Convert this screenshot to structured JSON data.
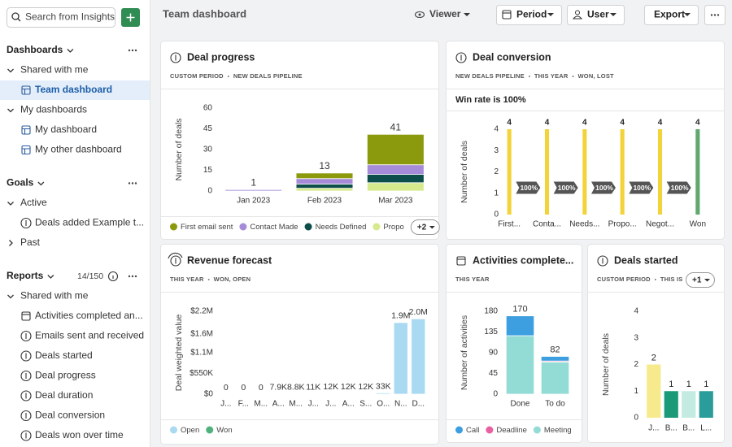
{
  "topbar": {
    "title": "Team dashboard",
    "viewer": "Viewer",
    "buttons": [
      "Period",
      "User",
      "Export"
    ]
  },
  "sidebar": {
    "search": "Search from Insights",
    "sections": [
      {
        "title": "Dashboards",
        "groups": [
          {
            "label": "Shared with me",
            "items": [
              "Team dashboard"
            ]
          },
          {
            "label": "My dashboards",
            "items": [
              "My dashboard",
              "My other dashboard"
            ]
          }
        ]
      },
      {
        "title": "Goals",
        "groups": [
          {
            "label": "Active",
            "items": [
              "Deals added Example t..."
            ]
          },
          {
            "label": "Past",
            "items": []
          }
        ]
      },
      {
        "title": "Reports",
        "count": "14/150",
        "groups": [
          {
            "label": "Shared with me",
            "items": [
              "Activities completed an...",
              "Emails sent and received",
              "Deals started",
              "Deal progress",
              "Deal duration",
              "Deal conversion",
              "Deals won over time"
            ]
          }
        ]
      }
    ]
  },
  "chart_data": [
    {
      "type": "bar",
      "stacked": true,
      "title": "Deal progress",
      "tags": [
        "CUSTOM PERIOD",
        "NEW DEALS PIPELINE"
      ],
      "y_label": "Number of deals",
      "categories": [
        "Jan 2023",
        "Feb 2023",
        "Mar 2023"
      ],
      "series": [
        {
          "name": "First email sent",
          "color": "#8a9a0c",
          "values": [
            0,
            4,
            22
          ]
        },
        {
          "name": "Contact Made",
          "color": "#a58bd8",
          "values": [
            1,
            4,
            7
          ]
        },
        {
          "name": "Needs Defined",
          "color": "#0d4d4a",
          "values": [
            0,
            3,
            6
          ]
        },
        {
          "name": "Propo",
          "color": "#d6e98d",
          "values": [
            0,
            2,
            6
          ]
        }
      ],
      "totals": [
        1,
        13,
        41
      ],
      "legend_more": "+2",
      "ylim": [
        0,
        60
      ],
      "yticks": [
        0,
        15,
        30,
        45,
        60
      ],
      "grid": false
    },
    {
      "type": "bar",
      "title": "Deal conversion",
      "tags": [
        "NEW DEALS PIPELINE",
        "THIS YEAR",
        "WON, LOST"
      ],
      "note": "Win rate is 100%",
      "y_label": "Number of deals",
      "categories": [
        "First...",
        "Conta...",
        "Needs...",
        "Propo...",
        "Negot...",
        "Won"
      ],
      "values": [
        4,
        4,
        4,
        4,
        4,
        4
      ],
      "colors": [
        "#f2d33a",
        "#f2d33a",
        "#f2d33a",
        "#f2d33a",
        "#f2d33a",
        "#5fa86e"
      ],
      "show_values": true,
      "conversions": {
        "values": [
          100,
          100,
          100,
          100,
          100
        ],
        "value_labels": [
          "100%",
          "100%",
          "100%",
          "100%",
          "100%"
        ]
      },
      "ylim": [
        0,
        4
      ],
      "yticks": [
        0,
        1,
        2,
        3,
        4
      ],
      "grid": false
    },
    {
      "type": "bar",
      "stacked": true,
      "title": "Revenue forecast",
      "tags": [
        "THIS YEAR",
        "WON, OPEN"
      ],
      "y_label": "Deal weighted value",
      "categories": [
        "J...",
        "F...",
        "M...",
        "A...",
        "M...",
        "J...",
        "J...",
        "A...",
        "S...",
        "O...",
        "N...",
        "D..."
      ],
      "series": [
        {
          "name": "Open",
          "color": "#a9daf2",
          "values": [
            0,
            0,
            0,
            7900,
            8800,
            11000,
            12000,
            12000,
            12000,
            33000,
            1900000,
            2000000
          ]
        },
        {
          "name": "Won",
          "color": "#4fb27c",
          "values": [
            0,
            0,
            0,
            0,
            0,
            0,
            0,
            0,
            0,
            0,
            0,
            0
          ]
        }
      ],
      "totals": [
        0,
        0,
        0,
        7900,
        8800,
        11000,
        12000,
        12000,
        12000,
        33000,
        1900000,
        2000000
      ],
      "total_labels": [
        "0",
        "0",
        "0",
        "7.9K",
        "8.8K",
        "11K",
        "12K",
        "12K",
        "12K",
        "33K",
        "1.9M",
        "2.0M"
      ],
      "ylim": [
        0,
        2200000
      ],
      "yticks": [
        {
          "value": 0,
          "label": "$0"
        },
        {
          "value": 550000,
          "label": "$550K"
        },
        {
          "value": 1100000,
          "label": "$1.1M"
        },
        {
          "value": 1600000,
          "label": "$1.6M"
        },
        {
          "value": 2200000,
          "label": "$2.2M"
        }
      ],
      "grid": false
    },
    {
      "type": "bar",
      "stacked": true,
      "title": "Activities complete...",
      "tags": [
        "THIS YEAR"
      ],
      "y_label": "Number of activities",
      "categories": [
        "Done",
        "To do"
      ],
      "series": [
        {
          "name": "Call",
          "color": "#3d9ee0",
          "values": [
            43,
            10
          ]
        },
        {
          "name": "Deadline",
          "color": "#e8609f",
          "values": [
            0,
            2
          ]
        },
        {
          "name": "Meeting",
          "color": "#93dcd6",
          "values": [
            127,
            70
          ]
        }
      ],
      "totals": [
        170,
        82
      ],
      "ylim": [
        0,
        180
      ],
      "yticks": [
        0,
        45,
        90,
        135,
        180
      ],
      "grid": false
    },
    {
      "type": "bar",
      "title": "Deals started",
      "tags": [
        "CUSTOM PERIOD",
        "THIS IS"
      ],
      "tags_more": "+1",
      "y_label": "Number of deals",
      "categories": [
        "J...",
        "B...",
        "B...",
        "L..."
      ],
      "values": [
        2,
        1,
        1,
        1
      ],
      "colors": [
        "#f7ea8c",
        "#1a9a78",
        "#c4ebe1",
        "#2a9d9a"
      ],
      "show_values": true,
      "ylim": [
        0,
        4
      ],
      "yticks": [
        0,
        1,
        2,
        3,
        4
      ],
      "grid": false
    }
  ]
}
